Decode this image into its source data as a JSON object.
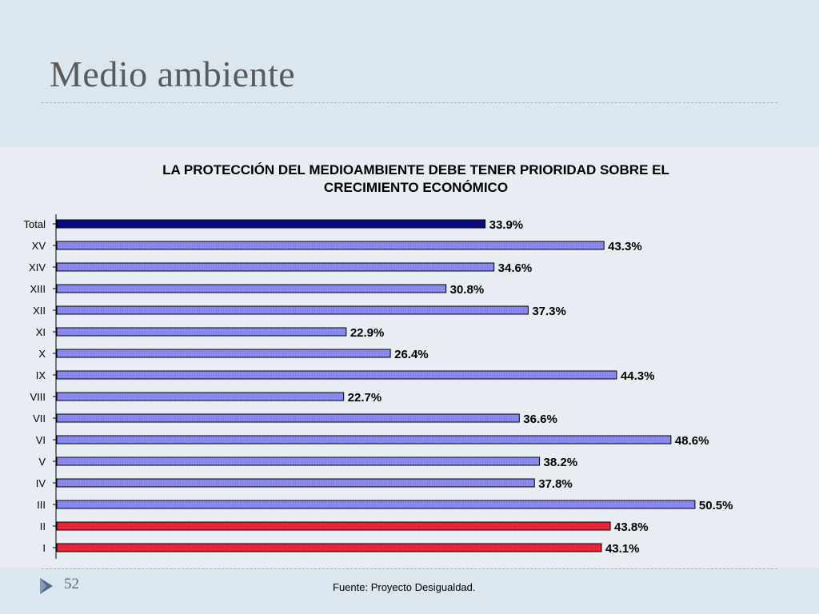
{
  "slide": {
    "title": "Medio ambiente",
    "number": "52",
    "source": "Fuente: Proyecto Desigualdad."
  },
  "icons": {
    "nav": "play-triangle-icon"
  },
  "colors": {
    "background": "#dbe6ee",
    "panel": "#e7edf3",
    "total_bar": "#0a0a80",
    "region_bar": "#8c8cf0",
    "highlight_bar": "#e8283c",
    "slide_number": "#4e6a88"
  },
  "chart_data": {
    "type": "bar",
    "orientation": "horizontal",
    "title_lines": [
      "LA PROTECCIÓN DEL MEDIOAMBIENTE DEBE TENER PRIORIDAD SOBRE EL",
      "CRECIMIENTO ECONÓMICO"
    ],
    "categories": [
      "Total",
      "XV",
      "XIV",
      "XIII",
      "XII",
      "XI",
      "X",
      "IX",
      "VIII",
      "VII",
      "VI",
      "V",
      "IV",
      "III",
      "II",
      "I"
    ],
    "values": [
      33.9,
      43.3,
      34.6,
      30.8,
      37.3,
      22.9,
      26.4,
      44.3,
      22.7,
      36.6,
      48.6,
      38.2,
      37.8,
      50.5,
      43.8,
      43.1
    ],
    "value_labels": [
      "33.9%",
      "43.3%",
      "34.6%",
      "30.8%",
      "37.3%",
      "22.9%",
      "26.4%",
      "44.3%",
      "22.7%",
      "36.6%",
      "48.6%",
      "38.2%",
      "37.8%",
      "50.5%",
      "43.8%",
      "43.1%"
    ],
    "bar_groups": [
      "total",
      "region",
      "region",
      "region",
      "region",
      "region",
      "region",
      "region",
      "region",
      "region",
      "region",
      "region",
      "region",
      "region",
      "highlight",
      "highlight"
    ],
    "value_unit": "%",
    "xlim": [
      0,
      55
    ],
    "grid": false,
    "legend": "none"
  }
}
